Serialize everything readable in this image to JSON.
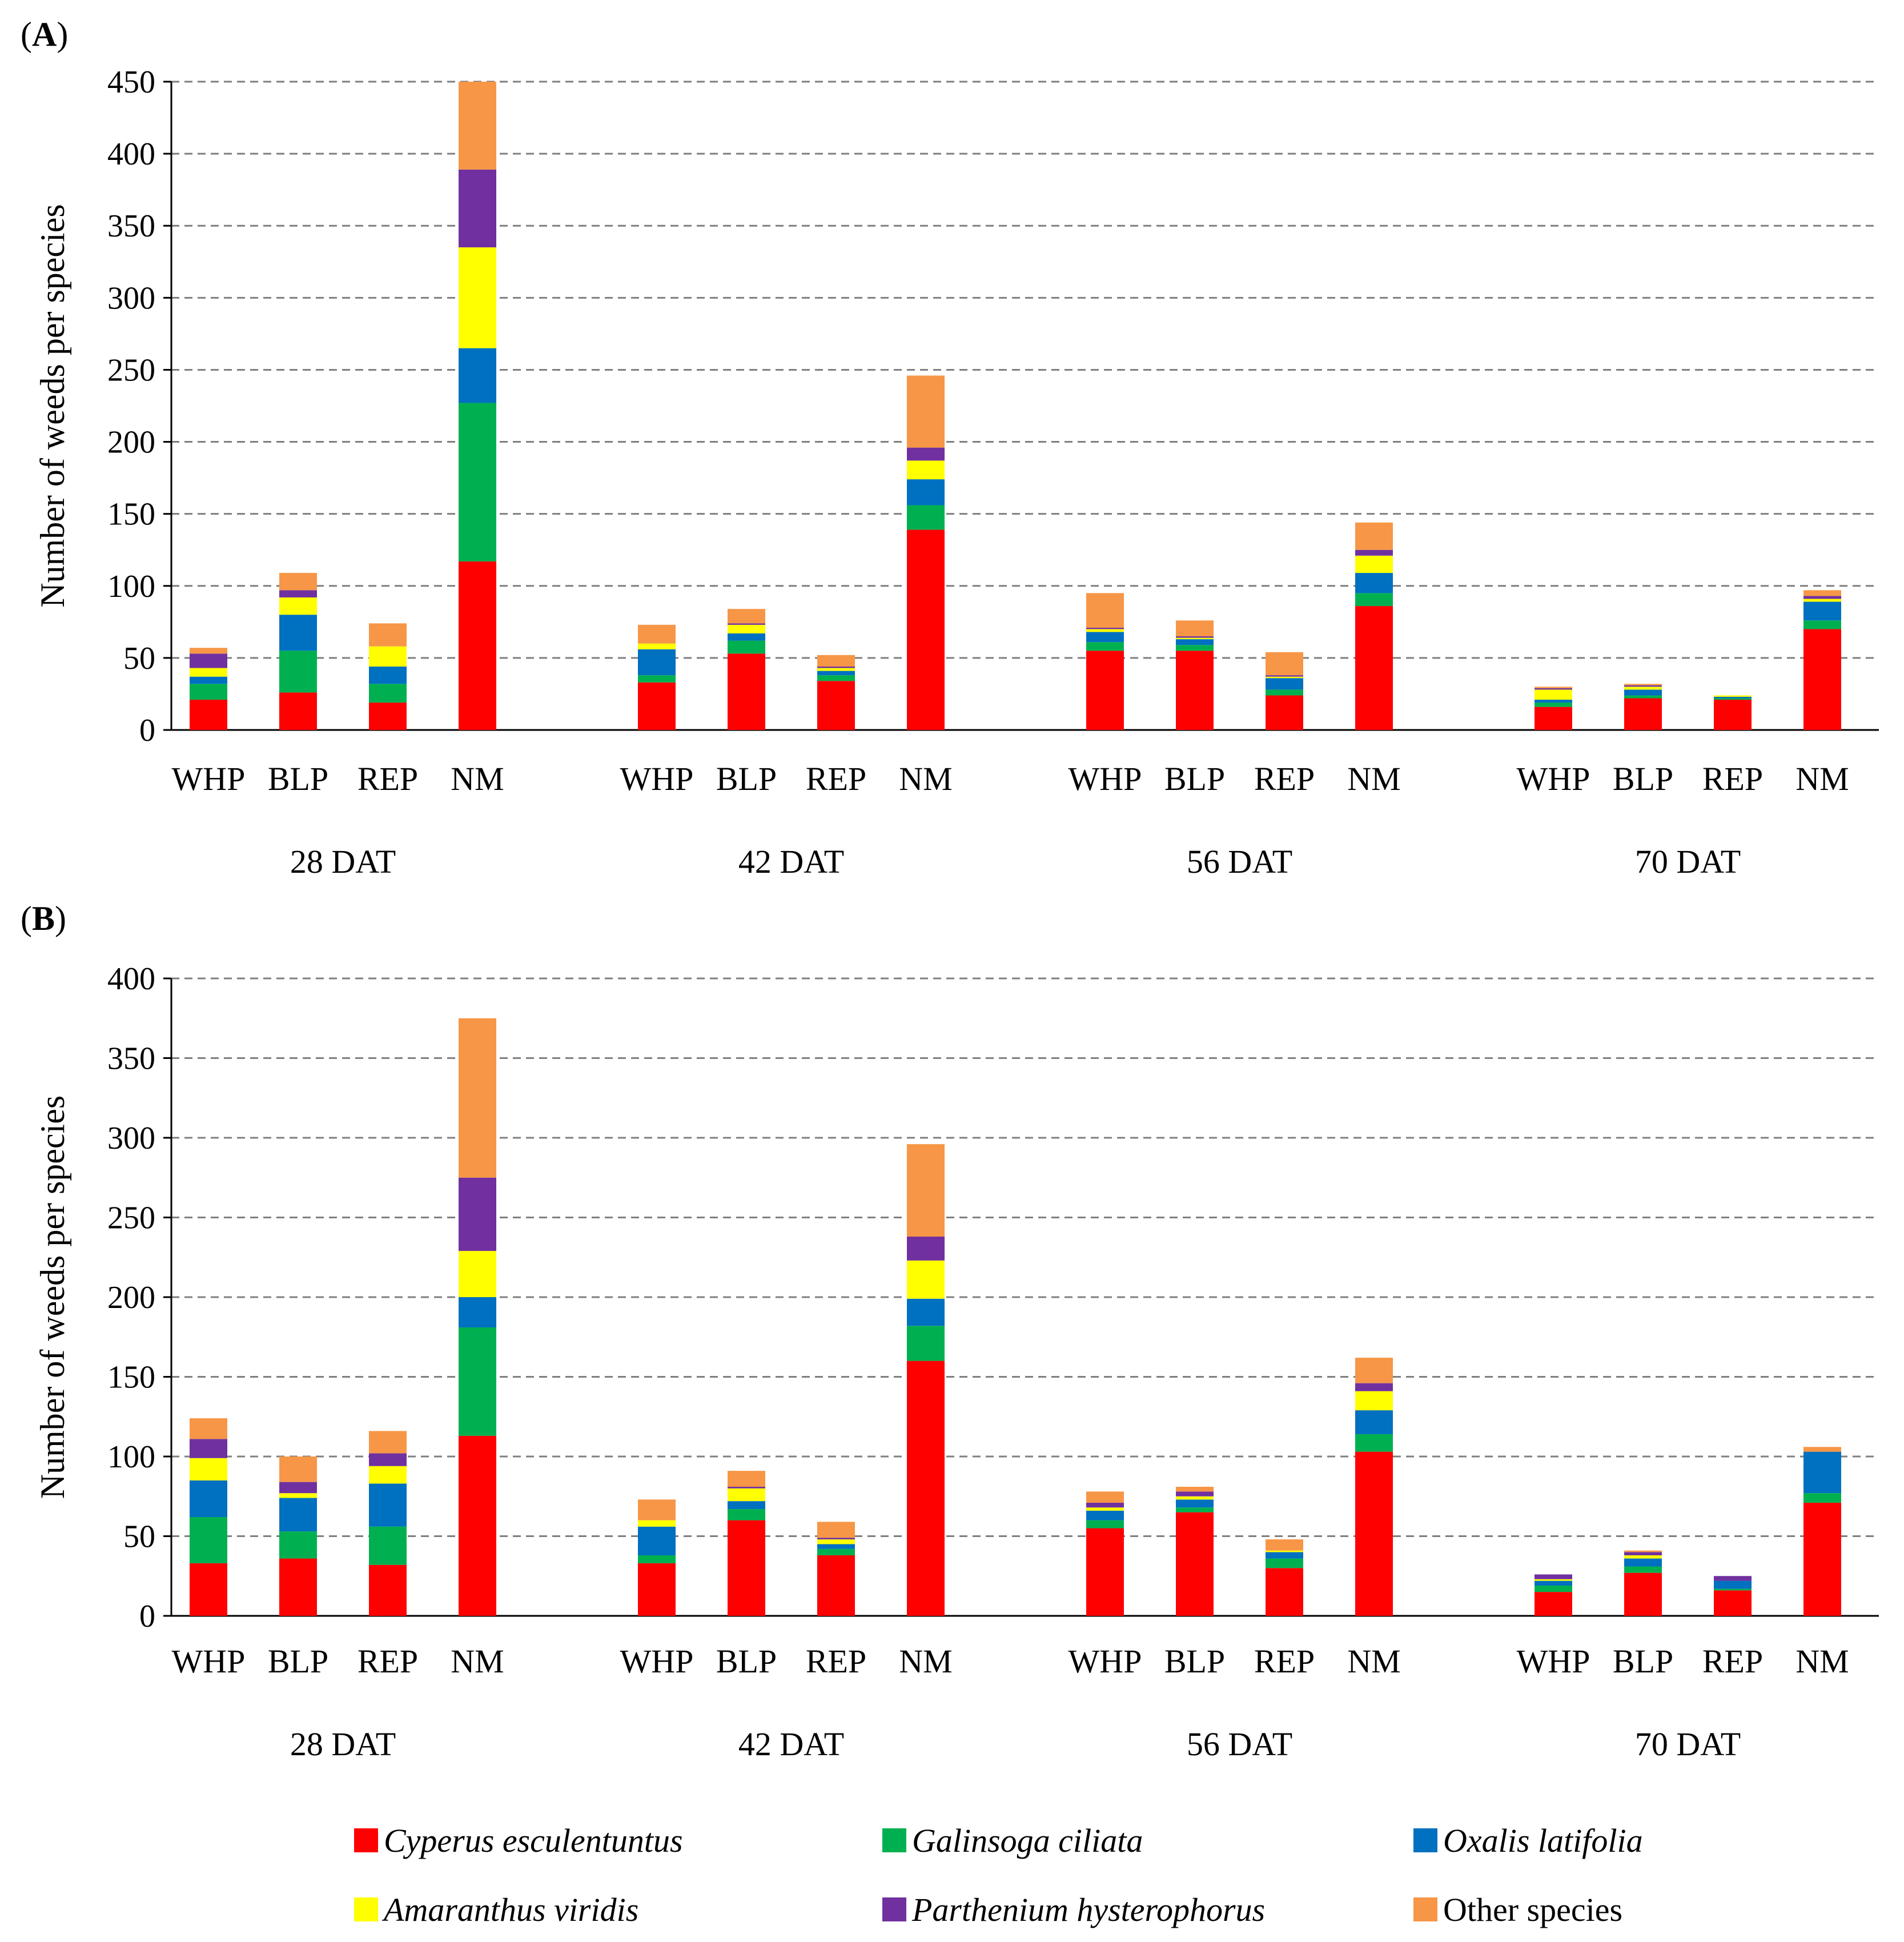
{
  "chart_data": [
    {
      "type": "bar",
      "stacked": true,
      "panel_label": "A",
      "ylabel": "Number of weeds per species",
      "ylim": [
        0,
        450
      ],
      "yticks": [
        0,
        50,
        100,
        150,
        200,
        250,
        300,
        350,
        400,
        450
      ],
      "grid": true,
      "groups": [
        {
          "label": "28 DAT",
          "bars": [
            {
              "label": "WHP",
              "values": [
                21,
                11,
                5,
                6,
                10,
                4
              ]
            },
            {
              "label": "BLP",
              "values": [
                26,
                29,
                25,
                12,
                5,
                12
              ]
            },
            {
              "label": "REP",
              "values": [
                19,
                13,
                12,
                14,
                0,
                16
              ]
            },
            {
              "label": "NM",
              "values": [
                117,
                110,
                38,
                70,
                54,
                61
              ]
            }
          ]
        },
        {
          "label": "42 DAT",
          "bars": [
            {
              "label": "WHP",
              "values": [
                33,
                5,
                18,
                4,
                0,
                13
              ]
            },
            {
              "label": "BLP",
              "values": [
                53,
                9,
                5,
                6,
                1,
                10
              ]
            },
            {
              "label": "REP",
              "values": [
                34,
                4,
                3,
                2,
                1,
                8
              ]
            },
            {
              "label": "NM",
              "values": [
                139,
                17,
                18,
                13,
                9,
                50
              ]
            }
          ]
        },
        {
          "label": "56 DAT",
          "bars": [
            {
              "label": "WHP",
              "values": [
                55,
                6,
                7,
                2,
                1,
                24
              ]
            },
            {
              "label": "BLP",
              "values": [
                55,
                4,
                4,
                1,
                1,
                11
              ]
            },
            {
              "label": "REP",
              "values": [
                24,
                4,
                8,
                1,
                1,
                16
              ]
            },
            {
              "label": "NM",
              "values": [
                86,
                9,
                14,
                12,
                4,
                19
              ]
            }
          ]
        },
        {
          "label": "70 DAT",
          "bars": [
            {
              "label": "WHP",
              "values": [
                16,
                3,
                2,
                7,
                1,
                1
              ]
            },
            {
              "label": "BLP",
              "values": [
                22,
                2,
                4,
                2,
                1,
                1
              ]
            },
            {
              "label": "REP",
              "values": [
                21,
                1,
                1,
                1,
                0,
                0
              ]
            },
            {
              "label": "NM",
              "values": [
                70,
                6,
                13,
                2,
                2,
                4
              ]
            }
          ]
        }
      ]
    },
    {
      "type": "bar",
      "stacked": true,
      "panel_label": "B",
      "ylabel": "Number of weeds per species",
      "ylim": [
        0,
        400
      ],
      "yticks": [
        0,
        50,
        100,
        150,
        200,
        250,
        300,
        350,
        400
      ],
      "grid": true,
      "groups": [
        {
          "label": "28 DAT",
          "bars": [
            {
              "label": "WHP",
              "values": [
                33,
                29,
                23,
                14,
                12,
                13
              ]
            },
            {
              "label": "BLP",
              "values": [
                36,
                17,
                21,
                3,
                7,
                16
              ]
            },
            {
              "label": "REP",
              "values": [
                32,
                24,
                27,
                11,
                8,
                14
              ]
            },
            {
              "label": "NM",
              "values": [
                113,
                68,
                19,
                29,
                46,
                100
              ]
            }
          ]
        },
        {
          "label": "42 DAT",
          "bars": [
            {
              "label": "WHP",
              "values": [
                33,
                5,
                18,
                4,
                0,
                13
              ]
            },
            {
              "label": "BLP",
              "values": [
                60,
                7,
                5,
                8,
                1,
                10
              ]
            },
            {
              "label": "REP",
              "values": [
                38,
                4,
                3,
                3,
                1,
                10
              ]
            },
            {
              "label": "NM",
              "values": [
                160,
                22,
                17,
                24,
                15,
                58
              ]
            }
          ]
        },
        {
          "label": "56 DAT",
          "bars": [
            {
              "label": "WHP",
              "values": [
                55,
                5,
                6,
                2,
                3,
                7
              ]
            },
            {
              "label": "BLP",
              "values": [
                65,
                3,
                5,
                2,
                3,
                3
              ]
            },
            {
              "label": "REP",
              "values": [
                30,
                6,
                4,
                1,
                0,
                7
              ]
            },
            {
              "label": "NM",
              "values": [
                103,
                11,
                15,
                12,
                5,
                16
              ]
            }
          ]
        },
        {
          "label": "70 DAT",
          "bars": [
            {
              "label": "WHP",
              "values": [
                15,
                4,
                3,
                1,
                3,
                0
              ]
            },
            {
              "label": "BLP",
              "values": [
                27,
                4,
                5,
                2,
                2,
                1
              ]
            },
            {
              "label": "REP",
              "values": [
                16,
                1,
                5,
                0,
                3,
                0
              ]
            },
            {
              "label": "NM",
              "values": [
                71,
                6,
                26,
                0,
                0,
                3
              ]
            }
          ]
        }
      ]
    }
  ],
  "series": [
    {
      "name": "Cyperus esculentuntus",
      "color": "#ff0000",
      "italic": true
    },
    {
      "name": "Galinsoga ciliata",
      "color": "#00b050",
      "italic": true
    },
    {
      "name": "Oxalis latifolia",
      "color": "#0070c0",
      "italic": true
    },
    {
      "name": "Amaranthus viridis",
      "color": "#ffff00",
      "italic": true
    },
    {
      "name": "Parthenium hysterophorus",
      "color": "#7030a0",
      "italic": true
    },
    {
      "name": "Other species",
      "color": "#f79646",
      "italic": false
    }
  ]
}
